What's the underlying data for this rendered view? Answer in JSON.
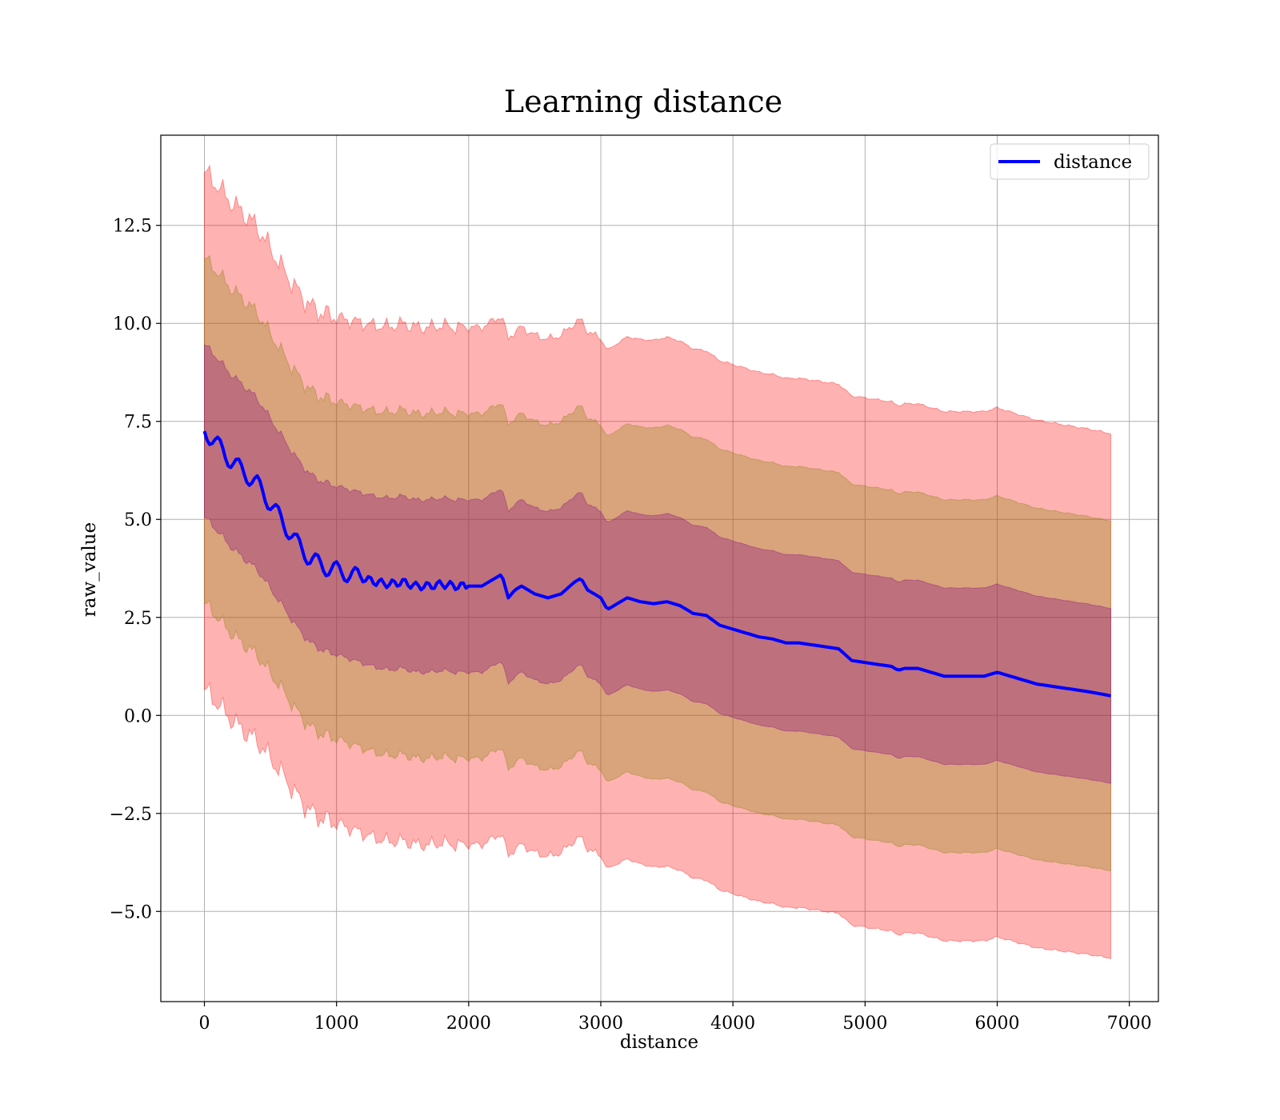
{
  "chart_data": {
    "type": "line",
    "title": "Learning distance",
    "xlabel": "distance",
    "ylabel": "raw_value",
    "xlim": [
      -330,
      7220
    ],
    "ylim": [
      -7.3,
      14.8
    ],
    "grid": true,
    "legend_position": "top-right",
    "x_ticks": [
      0,
      1000,
      2000,
      3000,
      4000,
      5000,
      6000,
      7000
    ],
    "x_tick_labels": [
      "0",
      "1000",
      "2000",
      "3000",
      "4000",
      "5000",
      "6000",
      "7000"
    ],
    "y_ticks": [
      -5.0,
      -2.5,
      0.0,
      2.5,
      5.0,
      7.5,
      10.0,
      12.5
    ],
    "y_tick_labels": [
      "−5.0",
      "−2.5",
      "0.0",
      "2.5",
      "5.0",
      "7.5",
      "10.0",
      "12.5"
    ],
    "bands": [
      {
        "sigma": 3,
        "color": "#ff0000",
        "alpha": 0.3
      },
      {
        "sigma": 2,
        "color": "#808000",
        "alpha": 0.3
      },
      {
        "sigma": 1,
        "color": "#800080",
        "alpha": 0.3
      }
    ],
    "band_halfwidth_unit": [
      [
        0,
        2.2
      ],
      [
        300,
        2.2
      ],
      [
        600,
        2.15
      ],
      [
        1000,
        2.15
      ],
      [
        1500,
        2.2
      ],
      [
        2000,
        2.2
      ],
      [
        2500,
        2.2
      ],
      [
        3000,
        2.2
      ],
      [
        3500,
        2.25
      ],
      [
        4000,
        2.25
      ],
      [
        4500,
        2.25
      ],
      [
        5000,
        2.25
      ],
      [
        5500,
        2.25
      ],
      [
        6000,
        2.25
      ],
      [
        6860,
        2.23
      ]
    ],
    "series": [
      {
        "name": "distance",
        "color": "#0000ff",
        "x": [
          0,
          50,
          100,
          150,
          200,
          300,
          400,
          500,
          600,
          700,
          800,
          900,
          1000,
          1100,
          1200,
          1300,
          1400,
          1500,
          1600,
          1700,
          1800,
          1900,
          2000,
          2100,
          2200,
          2250,
          2300,
          2350,
          2400,
          2500,
          2600,
          2700,
          2800,
          2850,
          2900,
          3000,
          3050,
          3100,
          3200,
          3300,
          3400,
          3500,
          3600,
          3700,
          3800,
          3900,
          4000,
          4100,
          4200,
          4300,
          4400,
          4500,
          4600,
          4700,
          4800,
          4900,
          5000,
          5100,
          5200,
          5250,
          5300,
          5400,
          5500,
          5600,
          5700,
          5800,
          5900,
          6000,
          6100,
          6200,
          6300,
          6400,
          6500,
          6600,
          6700,
          6860
        ],
        "y": [
          7.25,
          7.1,
          6.9,
          6.7,
          6.5,
          6.2,
          5.9,
          5.4,
          4.9,
          4.4,
          4.0,
          3.8,
          3.7,
          3.6,
          3.5,
          3.4,
          3.35,
          3.4,
          3.3,
          3.3,
          3.35,
          3.3,
          3.3,
          3.3,
          3.5,
          3.6,
          3.0,
          3.2,
          3.3,
          3.1,
          3.0,
          3.1,
          3.4,
          3.5,
          3.2,
          3.0,
          2.7,
          2.8,
          3.0,
          2.9,
          2.85,
          2.9,
          2.8,
          2.6,
          2.55,
          2.3,
          2.2,
          2.1,
          2.0,
          1.95,
          1.85,
          1.85,
          1.8,
          1.75,
          1.7,
          1.4,
          1.35,
          1.3,
          1.25,
          1.15,
          1.2,
          1.2,
          1.1,
          1.0,
          1.0,
          1.0,
          1.0,
          1.1,
          1.0,
          0.9,
          0.8,
          0.75,
          0.7,
          0.65,
          0.6,
          0.5
        ]
      }
    ]
  }
}
